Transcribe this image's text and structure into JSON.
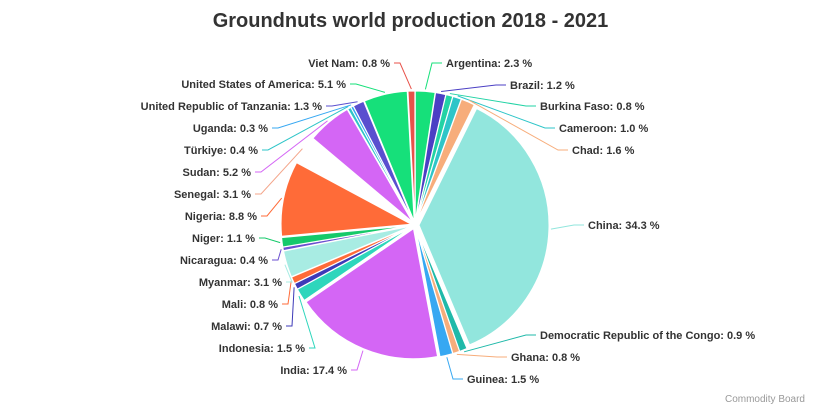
{
  "chart_data": {
    "type": "pie",
    "title": "Groundnuts world production 2018 - 2021",
    "slices": [
      {
        "label": "Argentina",
        "value": 2.3,
        "display": "Argentina: 2.3 %",
        "color": "#16e07a"
      },
      {
        "label": "Brazil",
        "value": 1.2,
        "display": "Brazil: 1.2 %",
        "color": "#4b3fc4"
      },
      {
        "label": "Burkina Faso",
        "value": 0.8,
        "display": "Burkina Faso: 0.8 %",
        "color": "#22d3a5"
      },
      {
        "label": "Cameroon",
        "value": 1.0,
        "display": "Cameroon: 1.0 %",
        "color": "#2ec5c8"
      },
      {
        "label": "Chad",
        "value": 1.6,
        "display": "Chad: 1.6 %",
        "color": "#f7ad7b"
      },
      {
        "label": "China",
        "value": 34.3,
        "display": "China: 34.3 %",
        "color": "#92e6dd"
      },
      {
        "label": "Democratic Republic of the Congo",
        "value": 0.9,
        "display": "Democratic Republic of the Congo: 0.9 %",
        "color": "#1fb9a9"
      },
      {
        "label": "Ghana",
        "value": 0.8,
        "display": "Ghana: 0.8 %",
        "color": "#f7ad7b"
      },
      {
        "label": "Guinea",
        "value": 1.5,
        "display": "Guinea: 1.5 %",
        "color": "#37a8f2"
      },
      {
        "label": "India",
        "value": 17.4,
        "display": "India: 17.4 %",
        "color": "#d466f5"
      },
      {
        "label": "Indonesia",
        "value": 1.5,
        "display": "Indonesia: 1.5 %",
        "color": "#2ed6bc"
      },
      {
        "label": "Malawi",
        "value": 0.7,
        "display": "Malawi: 0.7 %",
        "color": "#3d3ab8"
      },
      {
        "label": "Mali",
        "value": 0.8,
        "display": "Mali: 0.8 %",
        "color": "#ff6b38"
      },
      {
        "label": "Myanmar",
        "value": 3.1,
        "display": "Myanmar: 3.1 %",
        "color": "#a8ece3"
      },
      {
        "label": "Nicaragua",
        "value": 0.4,
        "display": "Nicaragua: 0.4 %",
        "color": "#6b4fd0"
      },
      {
        "label": "Niger",
        "value": 1.1,
        "display": "Niger: 1.1 %",
        "color": "#16c96a"
      },
      {
        "label": "Nigeria",
        "value": 8.8,
        "display": "Nigeria: 8.8 %",
        "color": "#ff6b38"
      },
      {
        "label": "Senegal",
        "value": 3.1,
        "display": "Senegal: 3.1 %",
        "color": "#ffffff"
      },
      {
        "label": "Sudan",
        "value": 5.2,
        "display": "Sudan: 5.2 %",
        "color": "#d466f5"
      },
      {
        "label": "Türkiye",
        "value": 0.4,
        "display": "Türkiye: 0.4 %",
        "color": "#2ec5c8"
      },
      {
        "label": "Uganda",
        "value": 0.3,
        "display": "Uganda: 0.3 %",
        "color": "#37a8f2"
      },
      {
        "label": "United Republic of Tanzania",
        "value": 1.3,
        "display": "United Republic of Tanzania: 1.3 %",
        "color": "#5a4fcf"
      },
      {
        "label": "United States of America",
        "value": 5.1,
        "display": "United States of America: 5.1 %",
        "color": "#16e07a"
      },
      {
        "label": "Viet Nam",
        "value": 0.8,
        "display": "Viet Nam: 0.8 %",
        "color": "#e8524a"
      }
    ]
  },
  "credit": "Commodity Board"
}
